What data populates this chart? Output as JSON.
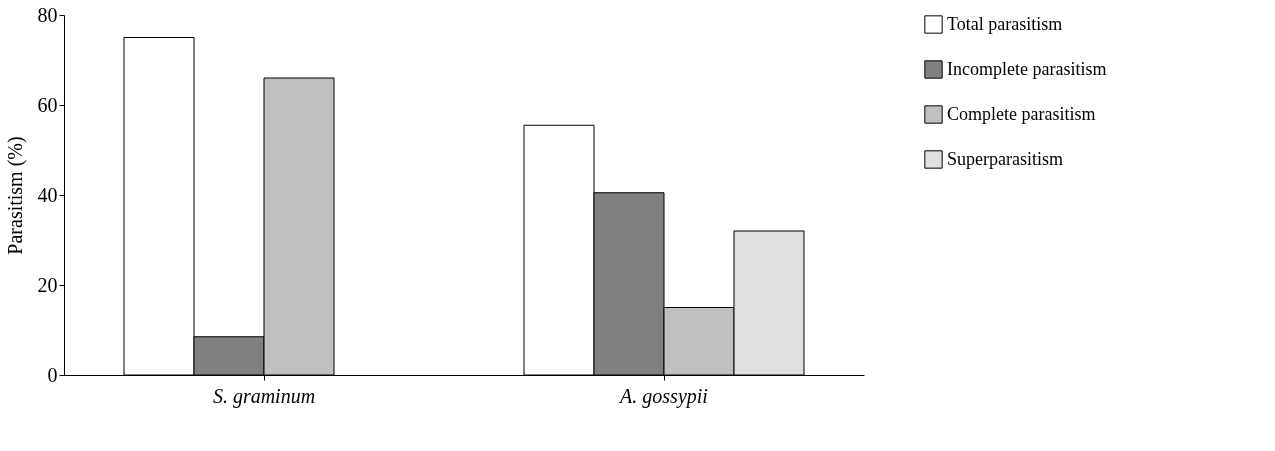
{
  "chart_data": {
    "type": "bar",
    "ylabel": "Parasitism (%)",
    "categories": [
      "S. graminum",
      "A. gossypii"
    ],
    "series": [
      {
        "name": "Total parasitism",
        "color": "#ffffff",
        "values": [
          75,
          55.5
        ]
      },
      {
        "name": "Incomplete parasitism",
        "color": "#808080",
        "values": [
          8.5,
          40.5
        ]
      },
      {
        "name": "Complete parasitism",
        "color": "#c0c0c0",
        "values": [
          66,
          15
        ]
      },
      {
        "name": "Superparasitism",
        "color": "#e0e0e0",
        "values": [
          null,
          32
        ]
      }
    ],
    "ylim": [
      0,
      80
    ],
    "yticks": [
      0,
      20,
      40,
      60,
      80
    ],
    "grid": false,
    "legend": "right"
  }
}
